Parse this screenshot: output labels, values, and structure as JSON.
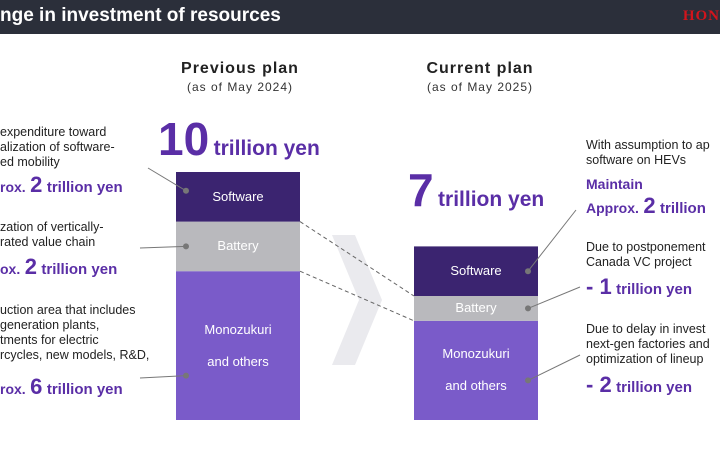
{
  "header": {
    "title": "nge in investment of resources",
    "logo": "HON"
  },
  "previous": {
    "title": "Previous plan",
    "subtitle": "(as of May 2024)",
    "total_num": "10",
    "total_unit": "trillion yen",
    "segments": [
      "Software",
      "Battery",
      "Monozukuri\nand others"
    ]
  },
  "current": {
    "title": "Current plan",
    "subtitle": "(as of May 2025)",
    "total_num": "7",
    "total_unit": "trillion yen",
    "segments": [
      "Software",
      "Battery",
      "Monozukuri\nand others"
    ]
  },
  "left_notes": [
    {
      "lines": [
        "expenditure toward",
        "alization of software-",
        "ed mobility"
      ],
      "pre": "rox.",
      "num": "2",
      "unit": "trillion yen"
    },
    {
      "lines": [
        "zation of vertically-",
        "rated value chain"
      ],
      "pre": "ox.",
      "num": "2",
      "unit": "trillion yen"
    },
    {
      "lines": [
        "uction area that includes",
        "generation plants,",
        "tments for electric",
        "rcycles, new models, R&D,"
      ],
      "pre": "rox.",
      "num": "6",
      "unit": "trillion yen"
    }
  ],
  "right_notes": [
    {
      "lines": [
        "With assumption to ap",
        "software on HEVs"
      ],
      "maintain": "Maintain",
      "pre": "Approx.",
      "num": "2",
      "unit": "trillion"
    },
    {
      "lines": [
        "Due to postponement",
        "Canada VC project"
      ],
      "sign": "- ",
      "num": "1",
      "unit": "trillion yen"
    },
    {
      "lines": [
        "Due to delay in invest",
        "next-gen factories and",
        "optimization of lineup"
      ],
      "sign": "- ",
      "num": "2",
      "unit": "trillion yen"
    }
  ],
  "colors": {
    "software": "#3b2470",
    "battery": "#b9b9bd",
    "monozukuri": "#7a5bc9",
    "accent": "#5a2ea6",
    "header_bg": "#2b2f3a"
  },
  "chart_data": {
    "type": "bar",
    "stacked": true,
    "unit": "trillion yen",
    "categories": [
      "Previous plan",
      "Current plan"
    ],
    "series": [
      {
        "name": "Monozukuri and others",
        "values": [
          6,
          4
        ]
      },
      {
        "name": "Battery",
        "values": [
          2,
          1
        ]
      },
      {
        "name": "Software",
        "values": [
          2,
          2
        ]
      }
    ],
    "totals": [
      10,
      7
    ]
  }
}
